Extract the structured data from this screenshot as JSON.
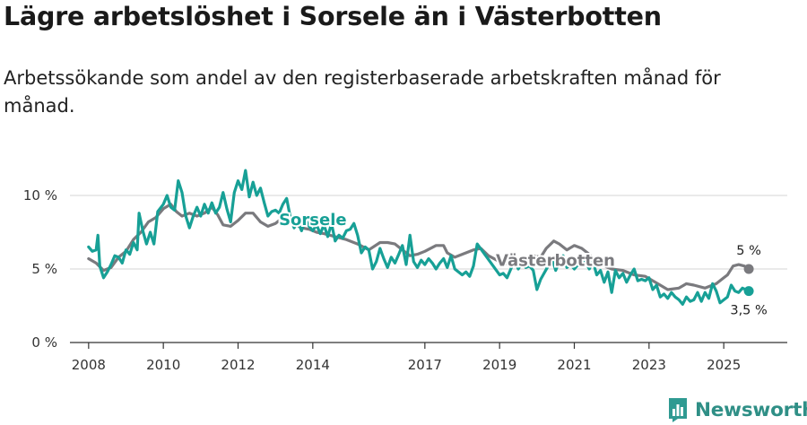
{
  "title": "Lägre arbetslöshet i Sorsele än i Västerbotten",
  "subtitle": "Arbetssökande som andel av den registerbaserade arbetskraften månad för månad.",
  "brand": {
    "name": "Newsworthy",
    "icon": "bar-chart-icon",
    "color": "#2f9a92"
  },
  "colors": {
    "sorsele": "#17a096",
    "vasterbotten": "#7a7a7e",
    "grid": "#dddddd",
    "axis": "#333333"
  },
  "chart_data": {
    "type": "line",
    "title": "Lägre arbetslöshet i Sorsele än i Västerbotten",
    "xlabel": "",
    "ylabel": "",
    "xlim": [
      2007.5,
      2026.7
    ],
    "ylim": [
      0,
      10
    ],
    "yticks": [
      {
        "value": 0,
        "label": "0 %"
      },
      {
        "value": 5,
        "label": "5 %"
      },
      {
        "value": 10,
        "label": "10 %"
      }
    ],
    "xticks": [
      {
        "value": 2008,
        "label": "2008"
      },
      {
        "value": 2010,
        "label": "2010"
      },
      {
        "value": 2012,
        "label": "2012"
      },
      {
        "value": 2014,
        "label": "2014"
      },
      {
        "value": 2017,
        "label": "2017"
      },
      {
        "value": 2019,
        "label": "2019"
      },
      {
        "value": 2021,
        "label": "2021"
      },
      {
        "value": 2023,
        "label": "2023"
      },
      {
        "value": 2025,
        "label": "2025"
      }
    ],
    "series": [
      {
        "name": "Västerbotten",
        "color": "#7a7a7e",
        "label": "Västerbotten",
        "end_label": "5 %",
        "points": [
          [
            2008.0,
            5.7
          ],
          [
            2008.2,
            5.4
          ],
          [
            2008.4,
            4.9
          ],
          [
            2008.6,
            5.1
          ],
          [
            2008.8,
            5.8
          ],
          [
            2009.0,
            6.2
          ],
          [
            2009.2,
            7.0
          ],
          [
            2009.4,
            7.5
          ],
          [
            2009.6,
            8.2
          ],
          [
            2009.8,
            8.5
          ],
          [
            2010.0,
            9.1
          ],
          [
            2010.2,
            9.4
          ],
          [
            2010.35,
            8.9
          ],
          [
            2010.5,
            8.6
          ],
          [
            2010.7,
            8.8
          ],
          [
            2010.9,
            8.6
          ],
          [
            2011.1,
            8.8
          ],
          [
            2011.3,
            9.2
          ],
          [
            2011.45,
            8.7
          ],
          [
            2011.6,
            8.0
          ],
          [
            2011.8,
            7.9
          ],
          [
            2012.0,
            8.3
          ],
          [
            2012.2,
            8.8
          ],
          [
            2012.4,
            8.8
          ],
          [
            2012.6,
            8.2
          ],
          [
            2012.8,
            7.9
          ],
          [
            2013.0,
            8.1
          ],
          [
            2013.2,
            8.5
          ],
          [
            2013.35,
            8.5
          ],
          [
            2013.5,
            8.1
          ],
          [
            2013.7,
            7.8
          ],
          [
            2013.9,
            7.7
          ],
          [
            2014.1,
            7.5
          ],
          [
            2014.3,
            7.4
          ],
          [
            2014.6,
            7.2
          ],
          [
            2014.9,
            7.0
          ],
          [
            2015.2,
            6.7
          ],
          [
            2015.5,
            6.3
          ],
          [
            2015.8,
            6.8
          ],
          [
            2016.0,
            6.8
          ],
          [
            2016.2,
            6.7
          ],
          [
            2016.4,
            6.3
          ],
          [
            2016.6,
            5.9
          ],
          [
            2016.8,
            6.0
          ],
          [
            2017.0,
            6.2
          ],
          [
            2017.3,
            6.6
          ],
          [
            2017.5,
            6.6
          ],
          [
            2017.6,
            6.1
          ],
          [
            2017.8,
            5.8
          ],
          [
            2018.0,
            6.0
          ],
          [
            2018.3,
            6.3
          ],
          [
            2018.5,
            6.4
          ],
          [
            2018.7,
            5.9
          ],
          [
            2019.0,
            5.5
          ],
          [
            2019.3,
            5.3
          ],
          [
            2019.6,
            5.7
          ],
          [
            2019.9,
            5.9
          ],
          [
            2020.1,
            5.8
          ],
          [
            2020.25,
            6.4
          ],
          [
            2020.45,
            6.9
          ],
          [
            2020.6,
            6.7
          ],
          [
            2020.8,
            6.3
          ],
          [
            2021.0,
            6.6
          ],
          [
            2021.2,
            6.4
          ],
          [
            2021.4,
            6.0
          ],
          [
            2021.6,
            5.4
          ],
          [
            2021.8,
            5.2
          ],
          [
            2022.0,
            5.0
          ],
          [
            2022.3,
            4.9
          ],
          [
            2022.6,
            4.6
          ],
          [
            2022.9,
            4.5
          ],
          [
            2023.1,
            4.2
          ],
          [
            2023.3,
            3.9
          ],
          [
            2023.5,
            3.6
          ],
          [
            2023.8,
            3.7
          ],
          [
            2024.0,
            4.0
          ],
          [
            2024.2,
            3.9
          ],
          [
            2024.5,
            3.7
          ],
          [
            2024.8,
            4.0
          ],
          [
            2025.0,
            4.4
          ],
          [
            2025.1,
            4.6
          ],
          [
            2025.25,
            5.2
          ],
          [
            2025.4,
            5.3
          ],
          [
            2025.55,
            5.2
          ],
          [
            2025.67,
            5.0
          ]
        ]
      },
      {
        "name": "Sorsele",
        "color": "#17a096",
        "label": "Sorsele",
        "end_label": "3,5 %",
        "points": [
          [
            2008.0,
            6.5
          ],
          [
            2008.1,
            6.2
          ],
          [
            2008.2,
            6.3
          ],
          [
            2008.25,
            7.3
          ],
          [
            2008.3,
            5.2
          ],
          [
            2008.4,
            4.4
          ],
          [
            2008.5,
            4.8
          ],
          [
            2008.6,
            5.3
          ],
          [
            2008.7,
            5.9
          ],
          [
            2008.8,
            5.8
          ],
          [
            2008.9,
            5.4
          ],
          [
            2009.0,
            6.3
          ],
          [
            2009.1,
            6.0
          ],
          [
            2009.2,
            6.8
          ],
          [
            2009.3,
            6.3
          ],
          [
            2009.35,
            8.8
          ],
          [
            2009.45,
            7.6
          ],
          [
            2009.55,
            6.7
          ],
          [
            2009.65,
            7.5
          ],
          [
            2009.75,
            6.7
          ],
          [
            2009.85,
            8.9
          ],
          [
            2010.0,
            9.4
          ],
          [
            2010.1,
            10.0
          ],
          [
            2010.2,
            9.2
          ],
          [
            2010.3,
            9.0
          ],
          [
            2010.4,
            11.0
          ],
          [
            2010.5,
            10.2
          ],
          [
            2010.6,
            8.6
          ],
          [
            2010.7,
            7.8
          ],
          [
            2010.8,
            8.6
          ],
          [
            2010.9,
            9.2
          ],
          [
            2011.0,
            8.6
          ],
          [
            2011.1,
            9.4
          ],
          [
            2011.2,
            8.8
          ],
          [
            2011.3,
            9.5
          ],
          [
            2011.4,
            8.8
          ],
          [
            2011.5,
            9.2
          ],
          [
            2011.6,
            10.2
          ],
          [
            2011.7,
            9.1
          ],
          [
            2011.8,
            8.2
          ],
          [
            2011.9,
            10.2
          ],
          [
            2012.0,
            11.0
          ],
          [
            2012.1,
            10.4
          ],
          [
            2012.2,
            11.7
          ],
          [
            2012.3,
            9.9
          ],
          [
            2012.4,
            10.9
          ],
          [
            2012.5,
            10.0
          ],
          [
            2012.6,
            10.5
          ],
          [
            2012.7,
            9.5
          ],
          [
            2012.8,
            8.6
          ],
          [
            2012.9,
            8.9
          ],
          [
            2013.0,
            9.0
          ],
          [
            2013.1,
            8.8
          ],
          [
            2013.2,
            9.4
          ],
          [
            2013.3,
            9.8
          ],
          [
            2013.4,
            8.5
          ],
          [
            2013.5,
            7.8
          ],
          [
            2013.6,
            8.2
          ],
          [
            2013.7,
            7.6
          ],
          [
            2013.8,
            8.4
          ],
          [
            2013.9,
            7.9
          ],
          [
            2014.0,
            7.6
          ],
          [
            2014.1,
            8.0
          ],
          [
            2014.2,
            7.4
          ],
          [
            2014.3,
            8.0
          ],
          [
            2014.4,
            7.2
          ],
          [
            2014.5,
            8.1
          ],
          [
            2014.6,
            6.9
          ],
          [
            2014.7,
            7.3
          ],
          [
            2014.8,
            7.1
          ],
          [
            2014.9,
            7.6
          ],
          [
            2015.0,
            7.7
          ],
          [
            2015.1,
            8.1
          ],
          [
            2015.2,
            7.3
          ],
          [
            2015.3,
            6.1
          ],
          [
            2015.4,
            6.5
          ],
          [
            2015.5,
            6.3
          ],
          [
            2015.6,
            5.0
          ],
          [
            2015.7,
            5.5
          ],
          [
            2015.8,
            6.4
          ],
          [
            2015.9,
            5.7
          ],
          [
            2016.0,
            5.1
          ],
          [
            2016.1,
            5.8
          ],
          [
            2016.2,
            5.4
          ],
          [
            2016.3,
            6.0
          ],
          [
            2016.4,
            6.6
          ],
          [
            2016.5,
            5.3
          ],
          [
            2016.6,
            7.3
          ],
          [
            2016.7,
            5.5
          ],
          [
            2016.8,
            5.1
          ],
          [
            2016.9,
            5.6
          ],
          [
            2017.0,
            5.3
          ],
          [
            2017.1,
            5.7
          ],
          [
            2017.2,
            5.4
          ],
          [
            2017.3,
            5.0
          ],
          [
            2017.4,
            5.4
          ],
          [
            2017.5,
            5.7
          ],
          [
            2017.6,
            5.1
          ],
          [
            2017.7,
            5.9
          ],
          [
            2017.8,
            5.0
          ],
          [
            2017.9,
            4.8
          ],
          [
            2018.0,
            4.6
          ],
          [
            2018.1,
            4.8
          ],
          [
            2018.2,
            4.5
          ],
          [
            2018.3,
            5.2
          ],
          [
            2018.4,
            6.7
          ],
          [
            2019.0,
            4.6
          ],
          [
            2019.1,
            4.7
          ],
          [
            2019.2,
            4.4
          ],
          [
            2019.3,
            5.0
          ],
          [
            2019.4,
            5.6
          ],
          [
            2019.5,
            5.0
          ],
          [
            2019.6,
            5.4
          ],
          [
            2019.7,
            5.1
          ],
          [
            2019.8,
            5.2
          ],
          [
            2019.9,
            4.9
          ],
          [
            2020.0,
            3.6
          ],
          [
            2020.1,
            4.3
          ],
          [
            2020.3,
            5.2
          ],
          [
            2020.4,
            5.8
          ],
          [
            2020.5,
            4.9
          ],
          [
            2020.6,
            5.5
          ],
          [
            2020.7,
            5.9
          ],
          [
            2020.8,
            5.1
          ],
          [
            2020.9,
            5.3
          ],
          [
            2021.0,
            5.0
          ],
          [
            2021.1,
            5.3
          ],
          [
            2021.2,
            5.2
          ],
          [
            2021.3,
            5.5
          ],
          [
            2021.4,
            5.0
          ],
          [
            2021.5,
            5.5
          ],
          [
            2021.6,
            4.6
          ],
          [
            2021.7,
            4.9
          ],
          [
            2021.8,
            4.1
          ],
          [
            2021.9,
            4.8
          ],
          [
            2022.0,
            3.4
          ],
          [
            2022.1,
            4.9
          ],
          [
            2022.2,
            4.4
          ],
          [
            2022.3,
            4.7
          ],
          [
            2022.4,
            4.1
          ],
          [
            2022.5,
            4.6
          ],
          [
            2022.6,
            5.0
          ],
          [
            2022.7,
            4.2
          ],
          [
            2022.8,
            4.3
          ],
          [
            2022.9,
            4.2
          ],
          [
            2023.0,
            4.4
          ],
          [
            2023.1,
            3.6
          ],
          [
            2023.2,
            3.9
          ],
          [
            2023.3,
            3.1
          ],
          [
            2023.4,
            3.3
          ],
          [
            2023.5,
            3.0
          ],
          [
            2023.6,
            3.4
          ],
          [
            2023.7,
            3.1
          ],
          [
            2023.8,
            2.9
          ],
          [
            2023.9,
            2.6
          ],
          [
            2024.0,
            3.1
          ],
          [
            2024.1,
            2.8
          ],
          [
            2024.2,
            2.9
          ],
          [
            2024.3,
            3.4
          ],
          [
            2024.4,
            2.8
          ],
          [
            2024.5,
            3.4
          ],
          [
            2024.6,
            3.0
          ],
          [
            2024.7,
            4.0
          ],
          [
            2024.8,
            3.5
          ],
          [
            2024.9,
            2.7
          ],
          [
            2025.0,
            2.9
          ],
          [
            2025.1,
            3.1
          ],
          [
            2025.2,
            3.9
          ],
          [
            2025.3,
            3.5
          ],
          [
            2025.4,
            3.4
          ],
          [
            2025.5,
            3.7
          ],
          [
            2025.67,
            3.5
          ]
        ]
      }
    ]
  }
}
